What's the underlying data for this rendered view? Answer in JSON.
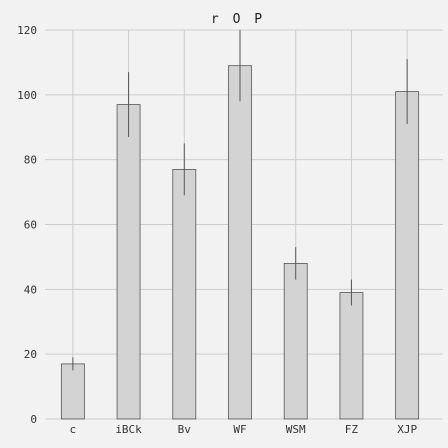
{
  "chart_data": {
    "type": "bar",
    "title": "r O P",
    "xlabel": "",
    "ylabel": "",
    "categories": [
      "c",
      "iBCk",
      "Bv",
      "WF",
      "WSM",
      "FZ",
      "XJP"
    ],
    "values": [
      17,
      97,
      77,
      109,
      48,
      39,
      101
    ],
    "errors": [
      2,
      10,
      8,
      11,
      5,
      4,
      10
    ],
    "ylim": [
      0,
      120
    ],
    "yticks": [
      "0",
      "20",
      "40",
      "60",
      "80",
      "100",
      "120"
    ],
    "grid": true,
    "bar_color": "#d3d3d3",
    "background_color": "#f2f2f2"
  }
}
